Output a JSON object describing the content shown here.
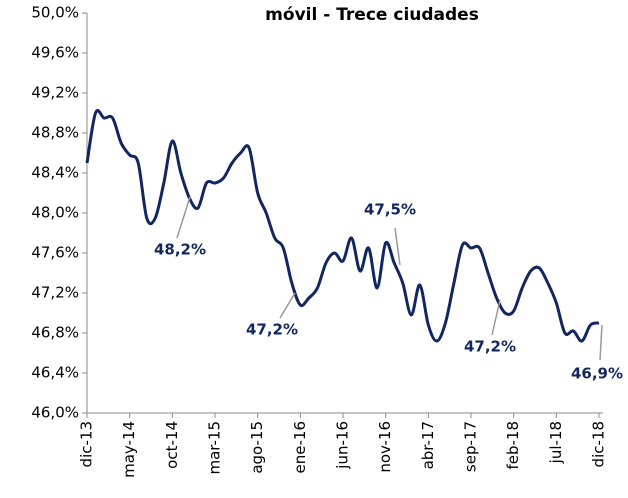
{
  "chart_data": {
    "type": "line",
    "title": "móvil - Trece ciudades",
    "categories": [
      "dic-13",
      null,
      null,
      null,
      null,
      "may-14",
      null,
      null,
      null,
      null,
      "oct-14",
      null,
      null,
      null,
      null,
      "mar-15",
      null,
      null,
      null,
      null,
      "ago-15",
      null,
      null,
      null,
      null,
      "ene-16",
      null,
      null,
      null,
      null,
      "jun-16",
      null,
      null,
      null,
      null,
      "nov-16",
      null,
      null,
      null,
      null,
      "abr-17",
      null,
      null,
      null,
      null,
      "sep-17",
      null,
      null,
      null,
      null,
      "feb-18",
      null,
      null,
      null,
      null,
      "jul-18",
      null,
      null,
      null,
      null,
      "dic-18"
    ],
    "series": [
      {
        "color": "#12275f",
        "values": [
          48.5,
          49.0,
          48.95,
          48.95,
          48.7,
          48.58,
          48.5,
          47.95,
          47.95,
          48.3,
          48.72,
          48.4,
          48.15,
          48.05,
          48.3,
          48.3,
          48.35,
          48.5,
          48.6,
          48.65,
          48.2,
          48.0,
          47.75,
          47.65,
          47.3,
          47.08,
          47.15,
          47.25,
          47.5,
          47.6,
          47.52,
          47.75,
          47.42,
          47.65,
          47.25,
          47.7,
          47.5,
          47.3,
          46.98,
          47.28,
          46.88,
          46.72,
          46.9,
          47.3,
          47.68,
          47.65,
          47.65,
          47.4,
          47.15,
          47.0,
          47.02,
          47.25,
          47.42,
          47.45,
          47.3,
          47.1,
          46.8,
          46.82,
          46.72,
          46.88,
          46.9
        ]
      }
    ],
    "ylim": [
      46.0,
      50.0
    ],
    "yticks": [
      {
        "value": 46.0,
        "label": "46,0%"
      },
      {
        "value": 46.4,
        "label": "46,4%"
      },
      {
        "value": 46.8,
        "label": "46,8%"
      },
      {
        "value": 47.2,
        "label": "47,2%"
      },
      {
        "value": 47.6,
        "label": "47,6%"
      },
      {
        "value": 48.0,
        "label": "48,0%"
      },
      {
        "value": 48.4,
        "label": "48,4%"
      },
      {
        "value": 48.8,
        "label": "48,8%"
      },
      {
        "value": 49.2,
        "label": "49,2%"
      },
      {
        "value": 49.6,
        "label": "49,6%"
      },
      {
        "value": 50.0,
        "label": "50,0%"
      }
    ],
    "annotations": [
      "48,2%",
      "47,2%",
      "47,5%",
      "47,2%",
      "46,9%"
    ],
    "grid": false
  }
}
